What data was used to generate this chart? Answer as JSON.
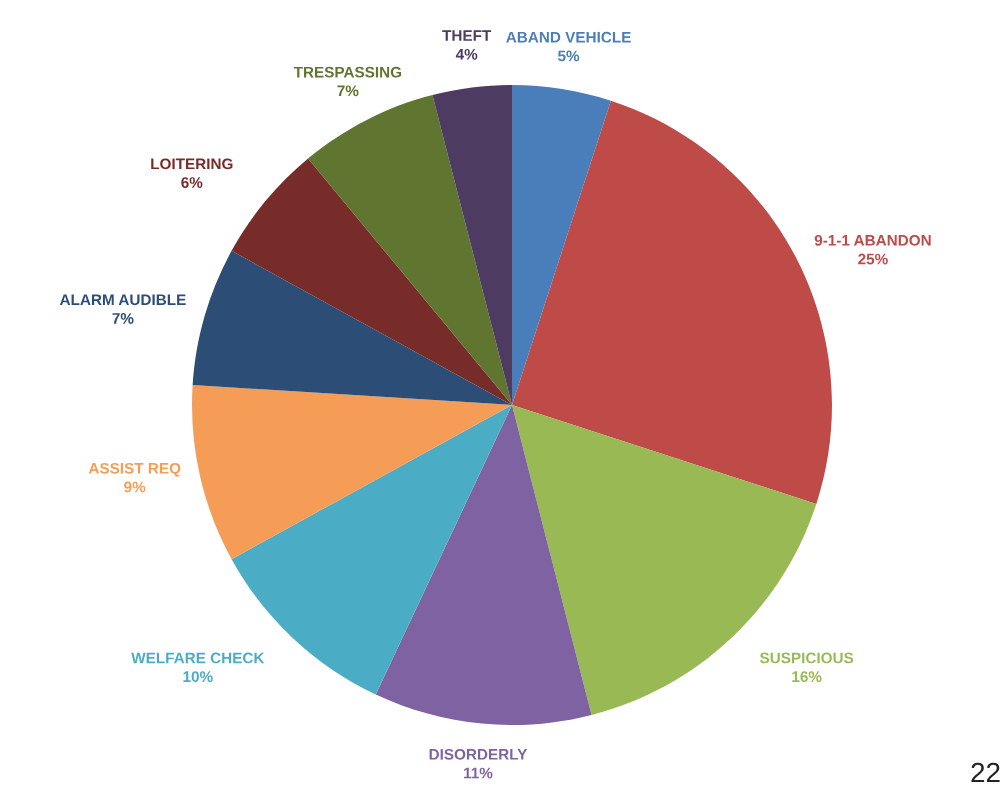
{
  "chart_data": {
    "type": "pie",
    "categories": [
      "ABAND VEHICLE",
      "9-1-1 ABANDON",
      "SUSPICIOUS",
      "DISORDERLY",
      "WELFARE CHECK",
      "ASSIST REQ",
      "ALARM AUDIBLE",
      "LOITERING",
      "TRESPASSING",
      "THEFT"
    ],
    "values": [
      5,
      25,
      16,
      11,
      10,
      9,
      7,
      6,
      7,
      4
    ],
    "value_labels": [
      "5%",
      "25%",
      "16%",
      "11%",
      "10%",
      "9%",
      "7%",
      "6%",
      "7%",
      "4%"
    ],
    "colors": [
      "#4a7ebb",
      "#be4b48",
      "#98b954",
      "#7e62a1",
      "#4bacc6",
      "#f59d56",
      "#2c4d75",
      "#772c2a",
      "#5f7530",
      "#4d3b62"
    ],
    "annotations": [
      "22"
    ]
  }
}
